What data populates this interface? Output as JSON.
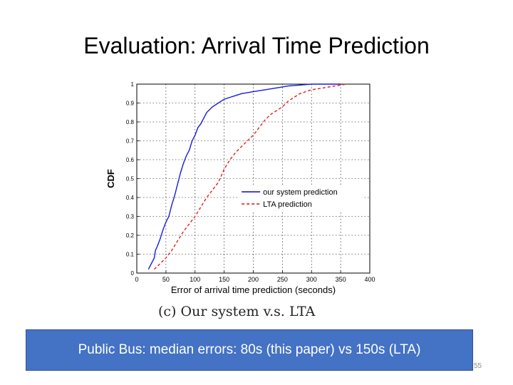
{
  "slide": {
    "title": "Evaluation: Arrival Time Prediction",
    "caption": "(c) Our system v.s. LTA",
    "banner": "Public Bus: median errors: 80s (this paper) vs 150s (LTA)",
    "page_number": "55"
  },
  "colors": {
    "our_system": "#1a1adb",
    "lta": "#e02020",
    "banner_bg": "#4472c4",
    "grid": "#000000"
  },
  "chart_data": {
    "type": "line",
    "title": "",
    "xlabel": "Error of arrival time prediction (seconds)",
    "ylabel": "CDF",
    "xlim": [
      0,
      400
    ],
    "ylim": [
      0,
      1
    ],
    "xticks": [
      "0",
      "50",
      "100",
      "150",
      "200",
      "250",
      "300",
      "350",
      "400"
    ],
    "yticks": [
      "0",
      "0.1",
      "0.2",
      "0.3",
      "0.4",
      "0.5",
      "0.6",
      "0.7",
      "0.8",
      "0.9",
      "1"
    ],
    "grid": true,
    "legend_position": "center-right",
    "series": [
      {
        "name": "our system prediction",
        "style": "solid",
        "color": "#1a1adb",
        "x": [
          20,
          25,
          30,
          32,
          35,
          40,
          45,
          50,
          55,
          60,
          65,
          70,
          75,
          80,
          85,
          90,
          95,
          100,
          105,
          110,
          115,
          120,
          130,
          140,
          150,
          160,
          170,
          180,
          200,
          220,
          240,
          260,
          280,
          300,
          320,
          350
        ],
        "y": [
          0.02,
          0.05,
          0.08,
          0.12,
          0.14,
          0.18,
          0.23,
          0.27,
          0.3,
          0.36,
          0.41,
          0.47,
          0.53,
          0.58,
          0.62,
          0.65,
          0.7,
          0.73,
          0.77,
          0.79,
          0.82,
          0.85,
          0.88,
          0.9,
          0.92,
          0.93,
          0.94,
          0.95,
          0.96,
          0.97,
          0.98,
          0.99,
          0.995,
          1.0,
          1.0,
          1.0
        ]
      },
      {
        "name": "LTA prediction",
        "style": "dashed",
        "color": "#e02020",
        "x": [
          30,
          40,
          50,
          60,
          70,
          80,
          90,
          100,
          110,
          120,
          130,
          140,
          150,
          160,
          170,
          180,
          190,
          200,
          210,
          220,
          230,
          240,
          250,
          260,
          270,
          280,
          290,
          300,
          320,
          340,
          360
        ],
        "y": [
          0.02,
          0.05,
          0.08,
          0.12,
          0.17,
          0.22,
          0.26,
          0.3,
          0.35,
          0.4,
          0.44,
          0.48,
          0.55,
          0.6,
          0.64,
          0.67,
          0.7,
          0.73,
          0.77,
          0.81,
          0.84,
          0.86,
          0.88,
          0.91,
          0.93,
          0.95,
          0.96,
          0.97,
          0.98,
          0.99,
          1.0
        ]
      }
    ]
  }
}
